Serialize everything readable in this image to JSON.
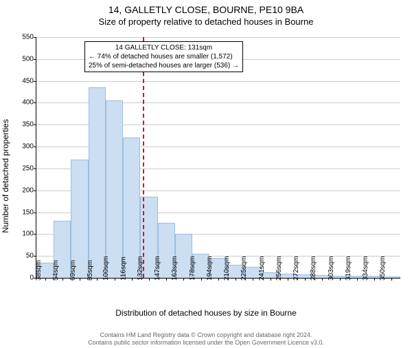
{
  "title_main": "14, GALLETLY CLOSE, BOURNE, PE10 9BA",
  "title_sub": "Size of property relative to detached houses in Bourne",
  "ylabel": "Number of detached properties",
  "xlabel": "Distribution of detached houses by size in Bourne",
  "chart": {
    "type": "histogram",
    "ylim_max": 550,
    "ytick_step": 50,
    "bar_fill": "#ccdef2",
    "bar_border": "#9cbde0",
    "grid_color": "#cccccc",
    "ref_line_color": "#d11515",
    "ref_line_pos_pct": 29.2,
    "categories": [
      "38sqm",
      "54sqm",
      "69sqm",
      "85sqm",
      "100sqm",
      "116sqm",
      "132sqm",
      "147sqm",
      "163sqm",
      "178sqm",
      "194sqm",
      "210sqm",
      "225sqm",
      "241sqm",
      "256sqm",
      "272sqm",
      "288sqm",
      "303sqm",
      "319sqm",
      "334sqm",
      "350sqm"
    ],
    "values": [
      35,
      130,
      270,
      435,
      405,
      320,
      185,
      125,
      100,
      55,
      45,
      30,
      25,
      12,
      10,
      8,
      6,
      5,
      4,
      4,
      3
    ]
  },
  "annotation": {
    "line1": "14 GALLETLY CLOSE: 131sqm",
    "line2": "← 74% of detached houses are smaller (1,572)",
    "line3": "25% of semi-detached houses are larger (536) →"
  },
  "footer": {
    "line1": "Contains HM Land Registry data © Crown copyright and database right 2024.",
    "line2": "Contains public sector information licensed under the Open Government Licence v3.0."
  }
}
